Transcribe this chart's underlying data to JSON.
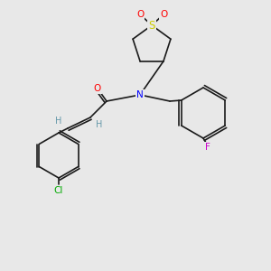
{
  "bg_color": "#e8e8e8",
  "bond_color": "#1a1a1a",
  "atom_colors": {
    "O": "#ff0000",
    "N": "#0000ff",
    "S": "#cccc00",
    "Cl": "#00aa00",
    "F": "#cc00cc",
    "H": "#6699aa"
  },
  "font_size": 7.5,
  "bond_width": 1.2
}
